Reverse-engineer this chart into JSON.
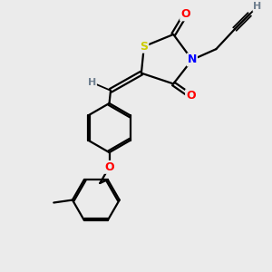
{
  "bg_color": "#ebebeb",
  "atom_colors": {
    "S": "#cccc00",
    "N": "#0000ff",
    "O": "#ff0000",
    "C": "#000000",
    "H": "#708090"
  },
  "bond_color": "#000000",
  "line_width": 1.6,
  "xlim": [
    0,
    10
  ],
  "ylim": [
    0,
    10
  ]
}
